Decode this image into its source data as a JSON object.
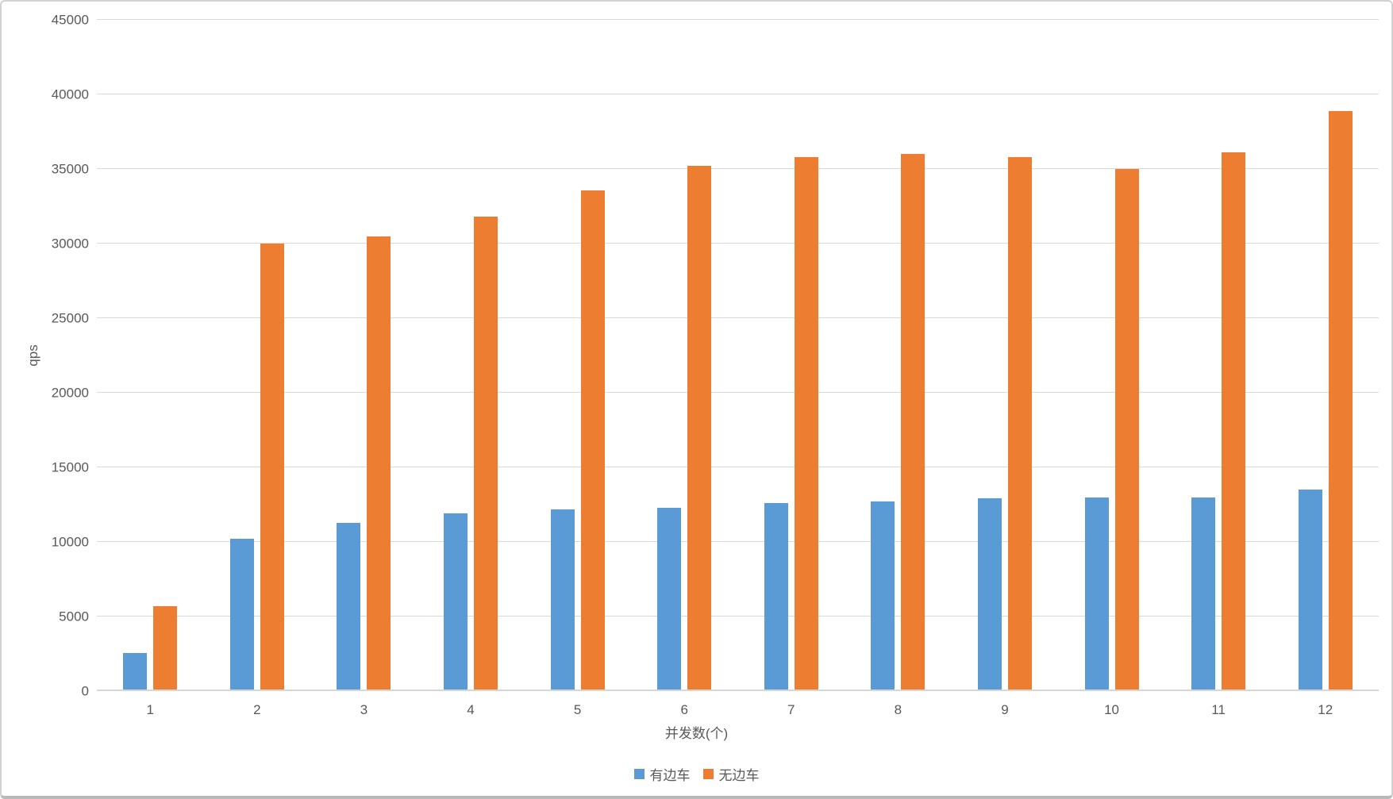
{
  "chart_data": {
    "type": "bar",
    "title": "",
    "xlabel": "并发数(个)",
    "ylabel": "qps",
    "categories": [
      "1",
      "2",
      "3",
      "4",
      "5",
      "6",
      "7",
      "8",
      "9",
      "10",
      "11",
      "12"
    ],
    "series": [
      {
        "key": "with-sidecar",
        "name": "有边车",
        "color": "#5B9BD5",
        "values": [
          2550,
          10200,
          11300,
          11900,
          12200,
          12300,
          12600,
          12700,
          12900,
          13000,
          13000,
          13500
        ]
      },
      {
        "key": "without-sidecar",
        "name": "无边车",
        "color": "#ED7D31",
        "values": [
          5700,
          30000,
          30500,
          31800,
          33550,
          35200,
          35800,
          36000,
          35800,
          35000,
          36100,
          38900
        ]
      }
    ],
    "ylim": [
      0,
      45000
    ],
    "yticks": [
      0,
      5000,
      10000,
      15000,
      20000,
      25000,
      30000,
      35000,
      40000,
      45000
    ],
    "grid": true,
    "legend_position": "bottom"
  },
  "colors": {
    "background": "#ffffff",
    "gridline": "#d9d9d9",
    "axis_line": "#d6d6d6",
    "text": "#595959",
    "border": "#d2d2d2",
    "border_bottom": "#b9b9b9"
  }
}
